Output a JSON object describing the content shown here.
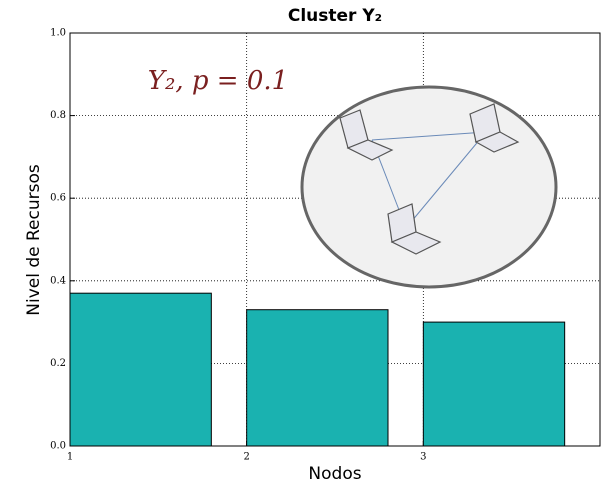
{
  "chart_data": {
    "type": "bar",
    "title": "Cluster Y₂",
    "annotation": "Y₂, p = 0.1",
    "x_label": "Nodos",
    "y_label": "Nivel de Recursos",
    "x": [
      1,
      2,
      3
    ],
    "values": [
      0.37,
      0.33,
      0.3
    ],
    "color": "#1ab2b0",
    "xlim": [
      1,
      4
    ],
    "xticks": [
      1,
      2,
      3
    ],
    "ylim": [
      0,
      1
    ],
    "yticks": [
      {
        "value": 0,
        "label": "0.0"
      },
      0.2,
      0.4,
      0.6,
      0.8,
      {
        "value": 1,
        "label": "1.0"
      }
    ],
    "grid": true
  }
}
